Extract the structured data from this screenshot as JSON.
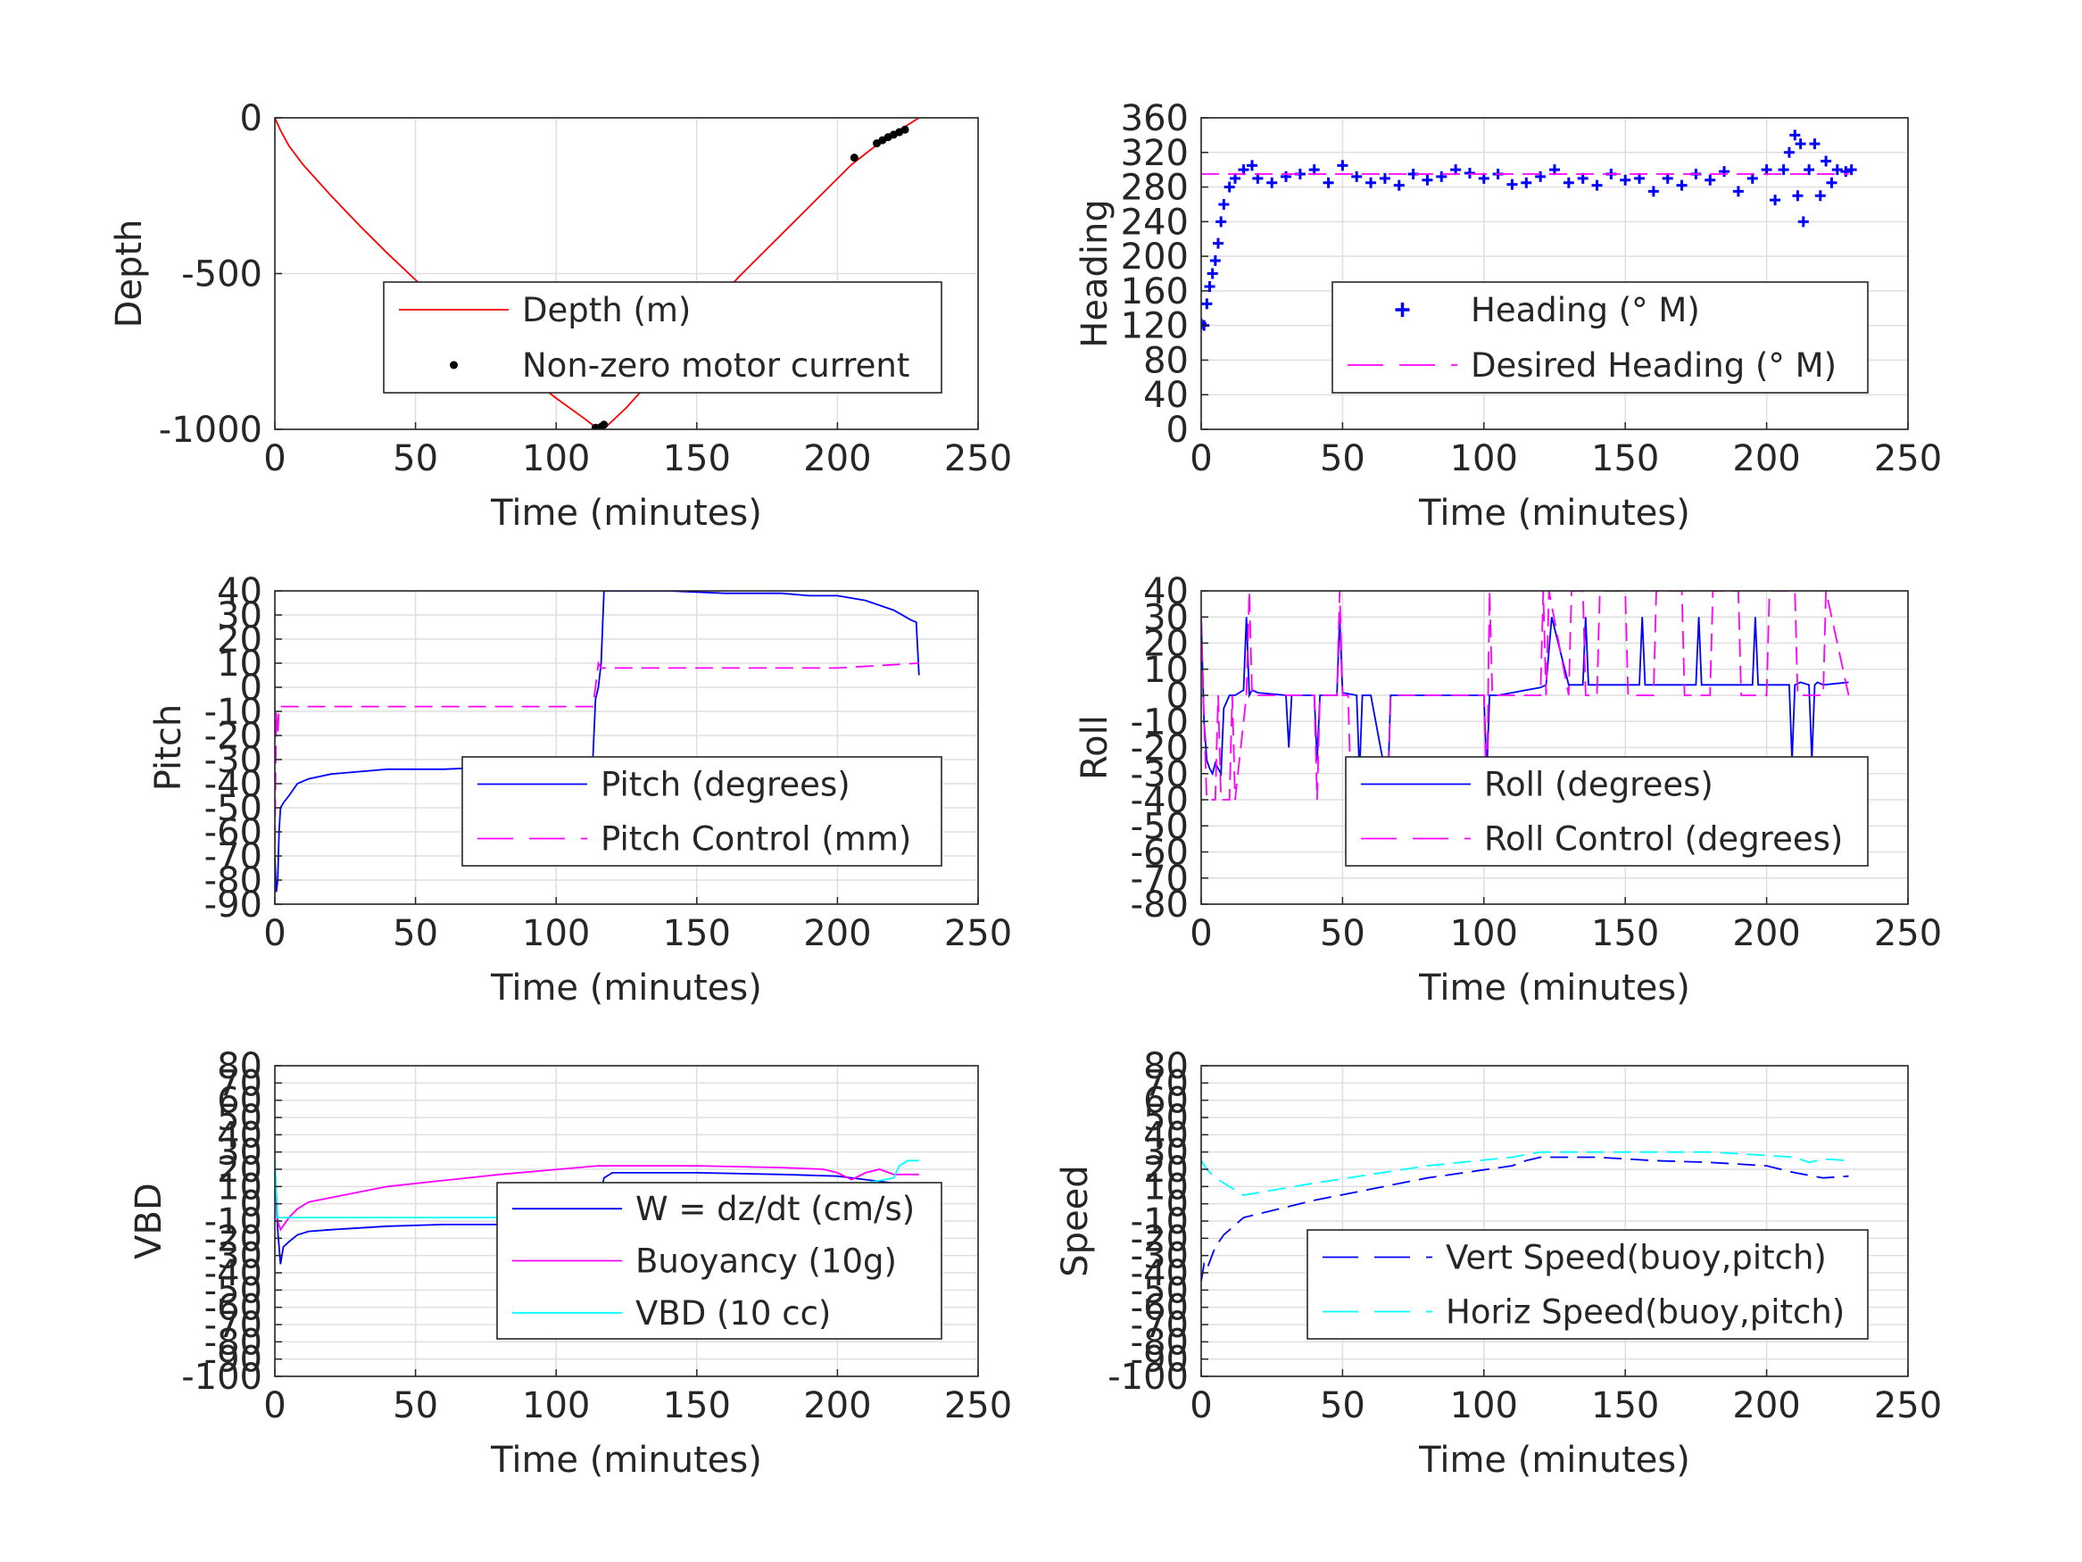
{
  "chart_data": [
    {
      "id": "depth",
      "type": "line",
      "xlabel": "Time (minutes)",
      "ylabel": "Depth",
      "xlim": [
        0,
        250
      ],
      "ylim": [
        -1000,
        0
      ],
      "xticks": [
        0,
        50,
        100,
        150,
        200,
        250
      ],
      "yticks": [
        0,
        -500,
        -1000
      ],
      "grid": true,
      "legend_position": "lower-right",
      "series": [
        {
          "name": "Depth (m)",
          "color": "#ff0000",
          "style": "solid",
          "x": [
            0,
            2,
            5,
            10,
            20,
            30,
            40,
            50,
            60,
            70,
            80,
            90,
            100,
            110,
            115,
            118,
            125,
            135,
            145,
            155,
            165,
            175,
            185,
            195,
            205,
            215,
            222,
            229
          ],
          "y": [
            0,
            -40,
            -90,
            -150,
            -250,
            -345,
            -435,
            -520,
            -600,
            -680,
            -755,
            -830,
            -900,
            -965,
            -1000,
            -990,
            -930,
            -830,
            -720,
            -610,
            -510,
            -420,
            -330,
            -240,
            -150,
            -80,
            -40,
            0
          ]
        },
        {
          "name": "Non-zero motor current",
          "color": "#000000",
          "style": "dots",
          "x": [
            114,
            115,
            116,
            117,
            206,
            214,
            216,
            218,
            220,
            222,
            224
          ],
          "y": [
            -995,
            -1000,
            -992,
            -985,
            -128,
            -82,
            -72,
            -62,
            -54,
            -46,
            -38
          ]
        }
      ]
    },
    {
      "id": "heading",
      "type": "scatter",
      "xlabel": "Time (minutes)",
      "ylabel": "Heading",
      "xlim": [
        0,
        250
      ],
      "ylim": [
        0,
        360
      ],
      "xticks": [
        0,
        50,
        100,
        150,
        200,
        250
      ],
      "yticks": [
        0,
        40,
        80,
        120,
        160,
        200,
        240,
        280,
        320,
        360
      ],
      "grid": true,
      "legend_position": "lower-right",
      "series": [
        {
          "name": "Heading (° M)",
          "color": "#0000ff",
          "style": "plus",
          "x": [
            0,
            1,
            2,
            3,
            4,
            5,
            6,
            7,
            8,
            10,
            12,
            15,
            18,
            20,
            25,
            30,
            35,
            40,
            45,
            50,
            55,
            60,
            65,
            70,
            75,
            80,
            85,
            90,
            95,
            100,
            105,
            110,
            115,
            120,
            125,
            130,
            135,
            140,
            145,
            150,
            155,
            160,
            165,
            170,
            175,
            180,
            185,
            190,
            195,
            200,
            203,
            206,
            208,
            210,
            211,
            212,
            213,
            215,
            217,
            219,
            221,
            223,
            225,
            228,
            230
          ],
          "y": [
            122,
            120,
            145,
            165,
            180,
            195,
            215,
            240,
            260,
            280,
            290,
            300,
            305,
            290,
            285,
            292,
            295,
            300,
            285,
            305,
            292,
            285,
            290,
            282,
            295,
            288,
            292,
            300,
            296,
            290,
            295,
            283,
            285,
            292,
            300,
            285,
            290,
            282,
            295,
            288,
            290,
            275,
            290,
            282,
            295,
            288,
            298,
            275,
            290,
            300,
            265,
            300,
            320,
            340,
            270,
            330,
            240,
            300,
            330,
            270,
            310,
            285,
            300,
            298,
            300
          ]
        },
        {
          "name": "Desired Heading (° M)",
          "color": "#ff00ff",
          "style": "dashed",
          "x": [
            0,
            229
          ],
          "y": [
            295,
            295
          ]
        }
      ]
    },
    {
      "id": "pitch",
      "type": "line",
      "xlabel": "Time (minutes)",
      "ylabel": "Pitch",
      "xlim": [
        0,
        250
      ],
      "ylim": [
        -90,
        40
      ],
      "xticks": [
        0,
        50,
        100,
        150,
        200,
        250
      ],
      "yticks": [
        -90,
        -80,
        -70,
        -60,
        -50,
        -40,
        -30,
        -20,
        -10,
        0,
        10,
        20,
        30,
        40
      ],
      "grid": true,
      "legend_position": "lower-right",
      "series": [
        {
          "name": "Pitch (degrees)",
          "color": "#0000ff",
          "style": "solid",
          "x": [
            0,
            0.5,
            1,
            1.5,
            2,
            3,
            5,
            8,
            12,
            20,
            30,
            40,
            60,
            80,
            100,
            110,
            113,
            114,
            115,
            116,
            117,
            120,
            140,
            160,
            180,
            190,
            200,
            210,
            220,
            226,
            228,
            229
          ],
          "y": [
            -70,
            -85,
            -80,
            -60,
            -50,
            -48,
            -45,
            -40,
            -38,
            -36,
            -35,
            -34,
            -34,
            -33,
            -33,
            -32,
            -31,
            -5,
            0,
            10,
            40,
            40,
            40,
            39,
            39,
            38,
            38,
            36,
            32,
            28,
            27,
            5
          ]
        },
        {
          "name": "Pitch Control (mm)",
          "color": "#ff00ff",
          "style": "dashed",
          "x": [
            0,
            0.5,
            1,
            1.5,
            2,
            2.5,
            110,
            113,
            114,
            115,
            116,
            120,
            200,
            229
          ],
          "y": [
            -65,
            -10,
            -20,
            -8,
            -8,
            -8,
            -8,
            -8,
            0,
            10,
            8,
            8,
            8,
            10
          ]
        }
      ]
    },
    {
      "id": "roll",
      "type": "line",
      "xlabel": "Time (minutes)",
      "ylabel": "Roll",
      "xlim": [
        0,
        250
      ],
      "ylim": [
        -80,
        40
      ],
      "xticks": [
        0,
        50,
        100,
        150,
        200,
        250
      ],
      "yticks": [
        -80,
        -70,
        -60,
        -50,
        -40,
        -30,
        -20,
        -10,
        0,
        10,
        20,
        30,
        40
      ],
      "grid": true,
      "legend_position": "lower-right",
      "series": [
        {
          "name": "Roll (degrees)",
          "color": "#0000ff",
          "style": "solid",
          "x": [
            0,
            1,
            2,
            3,
            4,
            5,
            6,
            7,
            8,
            10,
            12,
            15,
            16,
            17,
            18,
            20,
            30,
            31,
            32,
            40,
            41,
            42,
            48,
            49,
            50,
            55,
            56,
            57,
            60,
            66,
            67,
            68,
            80,
            90,
            100,
            101,
            102,
            105,
            110,
            115,
            120,
            122,
            124,
            130,
            135,
            136,
            137,
            140,
            150,
            155,
            156,
            157,
            160,
            170,
            175,
            176,
            177,
            180,
            190,
            195,
            196,
            197,
            200,
            208,
            209,
            210,
            212,
            215,
            216,
            217,
            218,
            220,
            229
          ],
          "y": [
            30,
            -10,
            -25,
            -28,
            -30,
            -26,
            -28,
            -30,
            -5,
            0,
            0,
            2,
            30,
            0,
            2,
            1,
            0,
            -20,
            0,
            0,
            -25,
            0,
            0,
            30,
            1,
            0,
            -30,
            0,
            0,
            -35,
            0,
            0,
            0,
            0,
            0,
            -30,
            0,
            0,
            1,
            2,
            3,
            4,
            30,
            4,
            4,
            30,
            4,
            4,
            4,
            4,
            30,
            4,
            4,
            4,
            4,
            30,
            4,
            4,
            4,
            4,
            30,
            4,
            4,
            4,
            -25,
            4,
            5,
            4,
            -25,
            4,
            5,
            4,
            5
          ]
        },
        {
          "name": "Roll Control (degrees)",
          "color": "#ff00ff",
          "style": "dashed",
          "x": [
            0,
            1,
            2,
            5,
            6,
            7,
            10,
            11,
            12,
            16,
            17,
            18,
            30,
            40,
            41,
            42,
            48,
            49,
            50,
            52,
            53,
            60,
            66,
            67,
            68,
            100,
            101,
            102,
            103,
            120,
            121,
            122,
            123,
            130,
            131,
            135,
            136,
            140,
            141,
            150,
            151,
            160,
            161,
            170,
            171,
            180,
            181,
            190,
            191,
            200,
            201,
            210,
            211,
            220,
            221,
            229
          ],
          "y": [
            30,
            -10,
            -40,
            -40,
            0,
            -40,
            -40,
            0,
            -40,
            0,
            40,
            0,
            0,
            0,
            -40,
            0,
            0,
            40,
            0,
            0,
            -40,
            -40,
            -40,
            0,
            0,
            0,
            -40,
            40,
            0,
            0,
            40,
            0,
            40,
            0,
            40,
            40,
            0,
            0,
            40,
            40,
            0,
            0,
            40,
            40,
            0,
            0,
            40,
            40,
            0,
            0,
            40,
            40,
            0,
            0,
            40,
            0
          ]
        }
      ]
    },
    {
      "id": "vbd",
      "type": "line",
      "xlabel": "Time (minutes)",
      "ylabel": "VBD",
      "xlim": [
        0,
        250
      ],
      "ylim": [
        -100,
        80
      ],
      "xticks": [
        0,
        50,
        100,
        150,
        200,
        250
      ],
      "yticks": [
        -100,
        -90,
        -80,
        -70,
        -60,
        -50,
        -40,
        -30,
        -20,
        -10,
        0,
        10,
        20,
        30,
        40,
        50,
        60,
        70,
        80
      ],
      "ytick_labels": [
        "-100",
        "-90",
        "-80",
        "-70",
        "-60",
        "-50",
        "-40",
        "-30",
        "-20",
        "-10",
        "0",
        "10",
        "20",
        "30",
        "40",
        "50",
        "60",
        "70",
        "80"
      ],
      "grid": true,
      "legend_position": "lower-right",
      "series": [
        {
          "name": "W = dz/dt (cm/s)",
          "color": "#0000ff",
          "style": "solid",
          "x": [
            0,
            1,
            2,
            3,
            5,
            8,
            12,
            20,
            40,
            60,
            80,
            100,
            110,
            114,
            115,
            117,
            120,
            150,
            180,
            200,
            210,
            220,
            229
          ],
          "y": [
            20,
            -15,
            -35,
            -25,
            -22,
            -18,
            -16,
            -15,
            -13,
            -12,
            -12,
            -11,
            -10,
            -9,
            0,
            15,
            18,
            18,
            17,
            16,
            14,
            12,
            11
          ]
        },
        {
          "name": "Buoyancy (10g)",
          "color": "#ff00ff",
          "style": "solid",
          "x": [
            0,
            1,
            2,
            5,
            8,
            12,
            40,
            80,
            115,
            120,
            150,
            180,
            195,
            200,
            205,
            210,
            215,
            220,
            229
          ],
          "y": [
            20,
            -10,
            -15,
            -8,
            -3,
            1,
            10,
            17,
            22,
            22,
            22,
            21,
            20,
            18,
            14,
            18,
            20,
            17,
            17
          ]
        },
        {
          "name": "VBD (10 cc)",
          "color": "#00ffff",
          "style": "solid",
          "x": [
            0,
            1,
            2,
            110,
            114,
            115,
            120,
            200,
            210,
            220,
            222,
            225,
            229
          ],
          "y": [
            25,
            -8,
            -8,
            -8,
            -8,
            12,
            12,
            12,
            12,
            15,
            22,
            25,
            25
          ]
        }
      ]
    },
    {
      "id": "speed",
      "type": "line",
      "xlabel": "Time (minutes)",
      "ylabel": "Speed",
      "xlim": [
        0,
        250
      ],
      "ylim": [
        -100,
        80
      ],
      "xticks": [
        0,
        50,
        100,
        150,
        200,
        250
      ],
      "yticks": [
        -100,
        -90,
        -80,
        -70,
        -60,
        -50,
        -40,
        -30,
        -20,
        -10,
        0,
        10,
        20,
        30,
        40,
        50,
        60,
        70,
        80
      ],
      "ytick_labels": [
        "-100",
        "-90",
        "-80",
        "-70",
        "-60",
        "-50",
        "-40",
        "-30",
        "-20",
        "-10",
        "0",
        "10",
        "20",
        "30",
        "40",
        "50",
        "60",
        "70",
        "80"
      ],
      "grid": true,
      "legend_position": "lower-right",
      "series": [
        {
          "name": "Vert Speed(buoy,pitch)",
          "color": "#0000ff",
          "style": "dashed",
          "x": [
            0,
            1,
            2,
            5,
            8,
            15,
            40,
            80,
            110,
            115,
            120,
            140,
            160,
            180,
            200,
            210,
            220,
            229
          ],
          "y": [
            -45,
            -35,
            -38,
            -25,
            -18,
            -8,
            2,
            15,
            22,
            25,
            27,
            27,
            25,
            24,
            22,
            18,
            15,
            16
          ]
        },
        {
          "name": "Horiz Speed(buoy,pitch)",
          "color": "#00ffff",
          "style": "dashed",
          "x": [
            0,
            2,
            5,
            10,
            15,
            40,
            80,
            110,
            120,
            140,
            160,
            180,
            200,
            210,
            215,
            220,
            229
          ],
          "y": [
            25,
            20,
            15,
            10,
            5,
            12,
            22,
            27,
            30,
            30,
            30,
            30,
            28,
            27,
            24,
            26,
            25
          ]
        }
      ]
    }
  ]
}
